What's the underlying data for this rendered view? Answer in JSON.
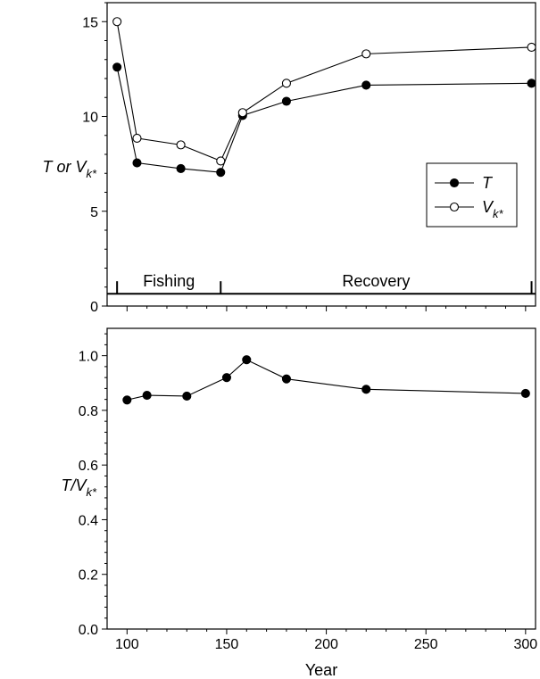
{
  "chart_data": [
    {
      "type": "line",
      "ylabel": {
        "main": "T or V",
        "sub": "k*"
      },
      "xlim": [
        90,
        305
      ],
      "ylim": [
        0,
        16
      ],
      "yticks": [
        0,
        5,
        10,
        15
      ],
      "grid": false,
      "legend_position": "right",
      "series": [
        {
          "name": "T",
          "marker": "filled-circle",
          "x": [
            95,
            105,
            127,
            147,
            158,
            180,
            220,
            303
          ],
          "y": [
            12.6,
            7.55,
            7.25,
            7.05,
            10.05,
            10.8,
            11.65,
            11.75
          ]
        },
        {
          "name": "V_k*",
          "legend": {
            "main": "V",
            "sub": "k*"
          },
          "marker": "open-circle",
          "x": [
            95,
            105,
            127,
            147,
            158,
            180,
            220,
            303
          ],
          "y": [
            15.0,
            8.85,
            8.5,
            7.65,
            10.2,
            11.75,
            13.3,
            13.65
          ]
        }
      ],
      "phase_annotations": {
        "y": 0.65,
        "tick_x": [
          95,
          147,
          303
        ],
        "labels": [
          {
            "text": "Fishing",
            "x": 121
          },
          {
            "text": "Recovery",
            "x": 225
          }
        ]
      }
    },
    {
      "type": "line",
      "xlabel": "Year",
      "ylabel": {
        "main": "T/V",
        "sub": "k*"
      },
      "xlim": [
        90,
        305
      ],
      "ylim": [
        0,
        1.1
      ],
      "xticks": [
        100,
        150,
        200,
        250,
        300
      ],
      "yticks": [
        0.0,
        0.2,
        0.4,
        0.6,
        0.8,
        1.0
      ],
      "ytick_labels": [
        "0.0",
        "0.2",
        "0.4",
        "0.6",
        "0.8",
        "1.0"
      ],
      "grid": false,
      "series": [
        {
          "marker": "filled-circle",
          "x": [
            100,
            110,
            130,
            150,
            160,
            180,
            220,
            300
          ],
          "y": [
            0.838,
            0.855,
            0.852,
            0.92,
            0.985,
            0.915,
            0.877,
            0.862
          ]
        }
      ]
    }
  ]
}
